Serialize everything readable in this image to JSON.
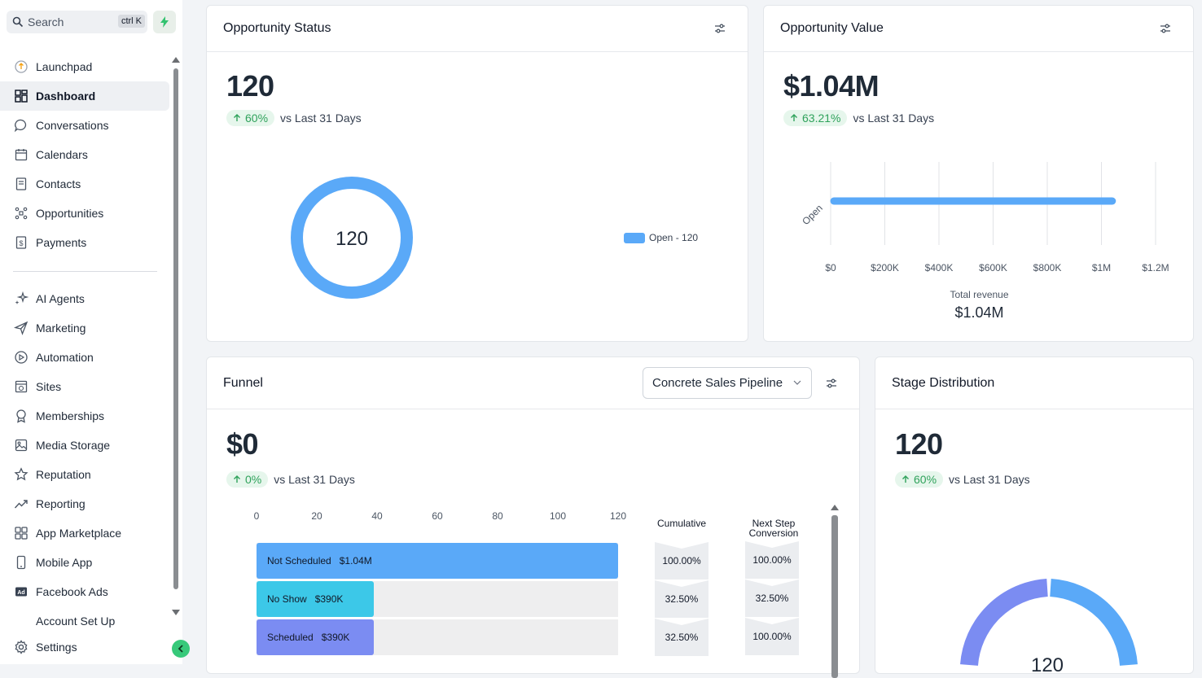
{
  "sidebar": {
    "search_label": "Search",
    "search_shortcut": "ctrl K",
    "items": [
      {
        "label": "Launchpad",
        "icon": "launchpad-icon"
      },
      {
        "label": "Dashboard",
        "icon": "dashboard-icon",
        "active": true
      },
      {
        "label": "Conversations",
        "icon": "chat-icon"
      },
      {
        "label": "Calendars",
        "icon": "calendar-icon"
      },
      {
        "label": "Contacts",
        "icon": "contacts-icon"
      },
      {
        "label": "Opportunities",
        "icon": "opportunities-icon"
      },
      {
        "label": "Payments",
        "icon": "payments-icon"
      }
    ],
    "items2": [
      {
        "label": "AI Agents",
        "icon": "sparkle-icon"
      },
      {
        "label": "Marketing",
        "icon": "send-icon"
      },
      {
        "label": "Automation",
        "icon": "automation-icon"
      },
      {
        "label": "Sites",
        "icon": "sites-icon"
      },
      {
        "label": "Memberships",
        "icon": "badge-icon"
      },
      {
        "label": "Media Storage",
        "icon": "image-icon"
      },
      {
        "label": "Reputation",
        "icon": "star-icon"
      },
      {
        "label": "Reporting",
        "icon": "trend-icon"
      },
      {
        "label": "App Marketplace",
        "icon": "grid-icon"
      },
      {
        "label": "Mobile App",
        "icon": "phone-icon"
      },
      {
        "label": "Facebook Ads",
        "icon": "ad-icon"
      }
    ],
    "cut_item": "Account Set Up",
    "settings_label": "Settings"
  },
  "opportunity_status": {
    "title": "Opportunity Status",
    "value": "120",
    "change": "60%",
    "compare": "vs Last 31 Days",
    "donut_center": "120",
    "legend": "Open - 120",
    "color": "#5aa9f8"
  },
  "opportunity_value": {
    "title": "Opportunity Value",
    "value": "$1.04M",
    "change": "63.21%",
    "compare": "vs Last 31 Days",
    "total_label": "Total revenue",
    "total_value": "$1.04M"
  },
  "funnel": {
    "title": "Funnel",
    "pipeline": "Concrete Sales Pipeline",
    "value": "$0",
    "change": "0%",
    "compare": "vs Last 31 Days",
    "cumulative_label": "Cumulative",
    "next_step_label_1": "Next Step",
    "next_step_label_2": "Conversion",
    "axis_ticks": [
      "0",
      "20",
      "40",
      "60",
      "80",
      "100",
      "120"
    ],
    "stages": [
      {
        "name": "Not Scheduled",
        "value": "$1.04M",
        "count": 120,
        "cumulative": "100.00%",
        "next_step": "100.00%",
        "color": "#5aa9f8"
      },
      {
        "name": "No Show",
        "value": "$390K",
        "count": 39,
        "cumulative": "32.50%",
        "next_step": "32.50%",
        "color": "#3cc8e8"
      },
      {
        "name": "Scheduled",
        "value": "$390K",
        "count": 39,
        "cumulative": "32.50%",
        "next_step": "100.00%",
        "color": "#7b8cf2"
      }
    ]
  },
  "stage_distribution": {
    "title": "Stage Distribution",
    "value": "120",
    "change": "60%",
    "compare": "vs Last 31 Days",
    "donut_center": "120"
  },
  "chart_data": [
    {
      "type": "pie",
      "title": "Opportunity Status",
      "categories": [
        "Open"
      ],
      "values": [
        120
      ]
    },
    {
      "type": "bar",
      "title": "Opportunity Value",
      "orientation": "horizontal",
      "categories": [
        "Open"
      ],
      "values": [
        1040000
      ],
      "xlim": [
        0,
        1200000
      ],
      "x_ticks": [
        "$0",
        "$200K",
        "$400K",
        "$600K",
        "$800K",
        "$1M",
        "$1.2M"
      ]
    },
    {
      "type": "bar",
      "title": "Funnel",
      "orientation": "horizontal",
      "categories": [
        "Not Scheduled",
        "No Show",
        "Scheduled"
      ],
      "values": [
        120,
        39,
        39
      ],
      "xlim": [
        0,
        120
      ]
    }
  ]
}
